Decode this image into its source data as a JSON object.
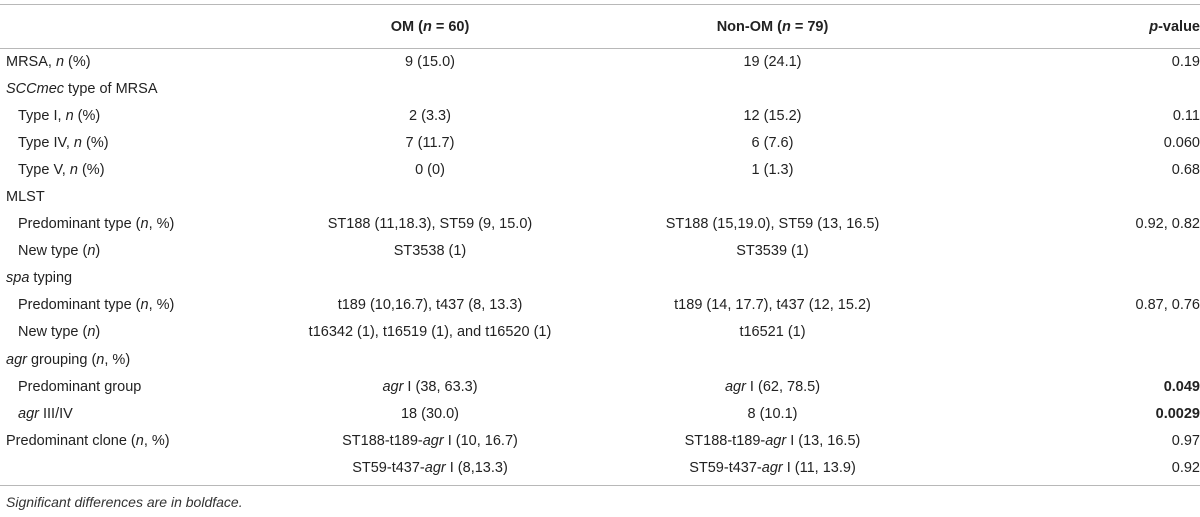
{
  "header": {
    "col0": "",
    "om": {
      "pre": "OM (",
      "var": "n",
      "post": " = 60)"
    },
    "nonom": {
      "pre": "Non-OM (",
      "var": "n",
      "post": " = 79)"
    },
    "p": {
      "var": "p",
      "post": "-value"
    }
  },
  "rows": {
    "mrsa": {
      "a": "MRSA, ",
      "b": "n",
      "c": " (%)",
      "om": "9 (15.0)",
      "nonom": "19 (24.1)",
      "p": "0.19"
    },
    "sccmec": {
      "a": "SCCmec",
      "b": " type of MRSA"
    },
    "type1": {
      "a": "Type I, ",
      "b": "n",
      "c": " (%)",
      "om": "2 (3.3)",
      "nonom": "12 (15.2)",
      "p": "0.11"
    },
    "type4": {
      "a": "Type IV, ",
      "b": "n",
      "c": " (%)",
      "om": "7 (11.7)",
      "nonom": "6 (7.6)",
      "p": "0.060"
    },
    "type5": {
      "a": "Type V, ",
      "b": "n",
      "c": " (%)",
      "om": "0 (0)",
      "nonom": "1 (1.3)",
      "p": "0.68"
    },
    "mlst": {
      "label": "MLST"
    },
    "mlst_pred": {
      "a": "Predominant type (",
      "b": "n",
      "c": ", %)",
      "om": "ST188 (11,18.3), ST59 (9, 15.0)",
      "nonom": "ST188 (15,19.0), ST59 (13, 16.5)",
      "p": "0.92, 0.82"
    },
    "mlst_new": {
      "a": "New type (",
      "b": "n",
      "c": ")",
      "om": "ST3538 (1)",
      "nonom": "ST3539 (1)",
      "p": ""
    },
    "spa": {
      "a": "spa",
      "b": " typing"
    },
    "spa_pred": {
      "a": "Predominant type (",
      "b": "n",
      "c": ", %)",
      "om": "t189 (10,16.7), t437 (8, 13.3)",
      "nonom": "t189 (14, 17.7), t437 (12, 15.2)",
      "p": "0.87, 0.76"
    },
    "spa_new": {
      "a": "New type (",
      "b": "n",
      "c": ")",
      "om": "t16342 (1), t16519 (1), and t16520 (1)",
      "nonom": "t16521 (1)",
      "p": ""
    },
    "agr": {
      "a": "agr",
      "b": " grouping (",
      "c": "n",
      "d": ", %)"
    },
    "agr_pred": {
      "label": "Predominant group",
      "om_i": "agr",
      "om": " I (38, 63.3)",
      "nonom_i": "agr",
      "nonom": " I (62, 78.5)",
      "p": "0.049"
    },
    "agr34": {
      "i": "agr",
      "label": " III/IV",
      "om": "18 (30.0)",
      "nonom": "8 (10.1)",
      "p": "0.0029"
    },
    "clone1": {
      "a": "Predominant clone (",
      "b": "n",
      "c": ", %)",
      "om_pre": "ST188-t189-",
      "om_i": "agr",
      "om_post": " I (10, 16.7)",
      "nonom_pre": "ST188-t189-",
      "nonom_i": "agr",
      "nonom_post": " I (13, 16.5)",
      "p": "0.97"
    },
    "clone2": {
      "om_pre": "ST59-t437-",
      "om_i": "agr",
      "om_post": " I (8,13.3)",
      "nonom_pre": "ST59-t437-",
      "nonom_i": "agr",
      "nonom_post": " I (11, 13.9)",
      "p": "0.92"
    }
  },
  "footnote": "Significant differences are in boldface."
}
